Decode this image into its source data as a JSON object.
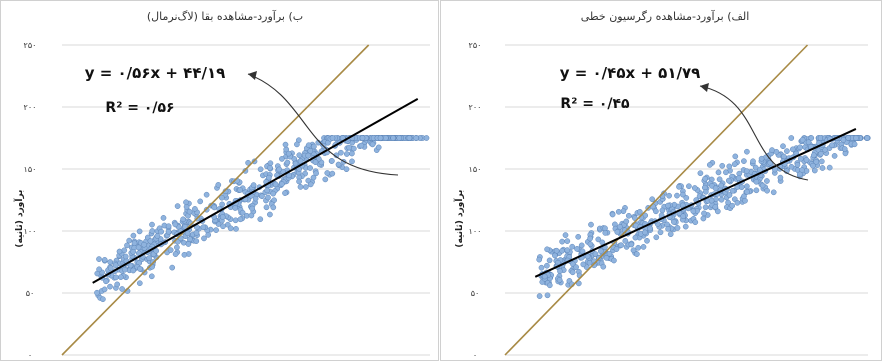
{
  "chart_data": [
    {
      "type": "scatter",
      "title": "ب) برآورد-مشاهده بقا (لاگ‌نرمال)",
      "ylabel": "برآورد (ثانیه)",
      "ylim": [
        0,
        250
      ],
      "grid": true,
      "yticks": [
        0,
        50,
        100,
        150,
        200,
        250
      ],
      "ytick_labels": [
        "۰",
        "۵۰",
        "۱۰۰",
        "۱۵۰",
        "۲۰۰",
        "۲۵۰"
      ],
      "equation": "y = ۰/۵۶x + ۴۴/۱۹",
      "r2": "R² = ۰/۵۶",
      "fit": {
        "slope": 0.56,
        "intercept": 44.19
      },
      "r2_value": 0.56,
      "band_ranges": [
        [
          225,
          290
        ],
        [
          205,
          287
        ],
        [
          190,
          278
        ],
        [
          165,
          290
        ],
        [
          155,
          290
        ],
        [
          135,
          300
        ],
        [
          120,
          295
        ]
      ],
      "colors": {
        "points": "#8fb3de",
        "point_edge": "#5d85b8",
        "fit": "#000000",
        "identity": "#a88a45"
      }
    },
    {
      "type": "scatter",
      "title": "الف) برآورد-مشاهده رگرسیون خطی",
      "ylabel": "برآورد (ثانیه)",
      "ylim": [
        0,
        250
      ],
      "grid": true,
      "yticks": [
        0,
        50,
        100,
        150,
        200,
        250
      ],
      "ytick_labels": [
        "۰",
        "۵۰",
        "۱۰۰",
        "۱۵۰",
        "۲۰۰",
        "۲۵۰"
      ],
      "equation": "y = ۰/۴۵x + ۵۱/۷۹",
      "r2": "R² = ۰/۴۵",
      "fit": {
        "slope": 0.45,
        "intercept": 51.79
      },
      "r2_value": 0.45,
      "band_ranges": [
        [
          210,
          300
        ],
        [
          190,
          300
        ],
        [
          175,
          300
        ],
        [
          165,
          300
        ],
        [
          150,
          300
        ],
        [
          135,
          300
        ],
        [
          120,
          285
        ]
      ],
      "colors": {
        "points": "#8fb3de",
        "point_edge": "#5d85b8",
        "fit": "#000000",
        "identity": "#a88a45"
      }
    }
  ]
}
